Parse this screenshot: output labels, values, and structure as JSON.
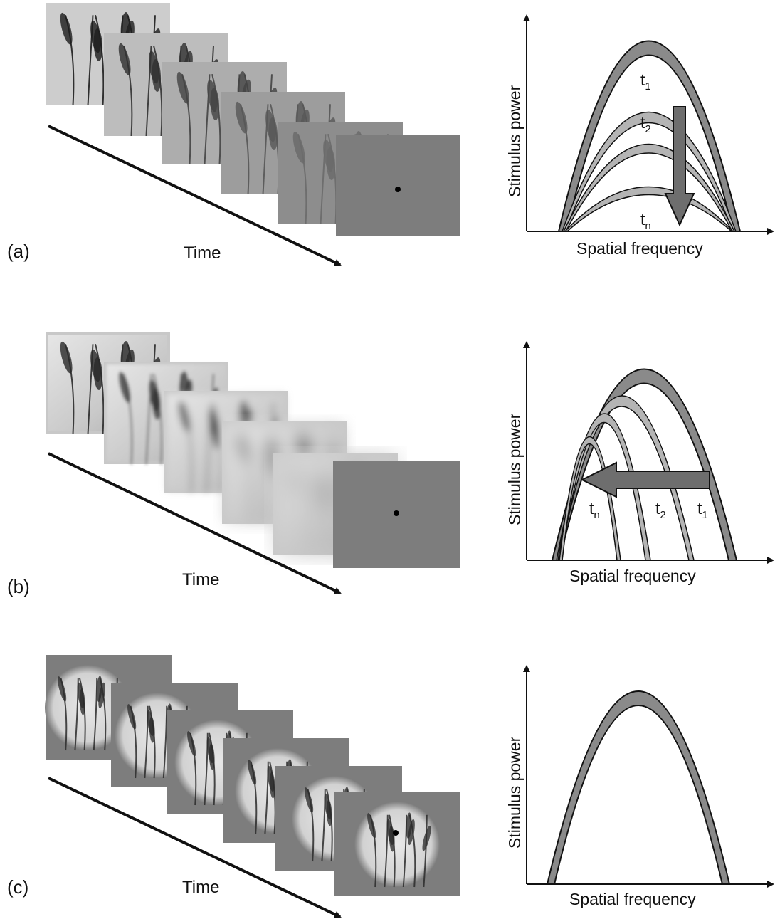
{
  "panels": [
    {
      "id": "a",
      "label": "(a)",
      "time_label": "Time",
      "xlabel": "Spatial frequency",
      "ylabel": "Stimulus power",
      "time_marks": [
        {
          "base": "t",
          "sub": "1"
        },
        {
          "base": "t",
          "sub": "2"
        },
        {
          "base": "t",
          "sub": "n"
        }
      ]
    },
    {
      "id": "b",
      "label": "(b)",
      "time_label": "Time",
      "xlabel": "Spatial frequency",
      "ylabel": "Stimulus power",
      "time_marks": [
        {
          "base": "t",
          "sub": "n"
        },
        {
          "base": "t",
          "sub": "2"
        },
        {
          "base": "t",
          "sub": "1"
        }
      ]
    },
    {
      "id": "c",
      "label": "(c)",
      "time_label": "Time",
      "xlabel": "Spatial frequency",
      "ylabel": "Stimulus power",
      "time_marks": []
    }
  ],
  "colors": {
    "band_dark": "#8a8a8a",
    "band_light": "#b4b4b4",
    "frame_gray": "#7d7d7d",
    "stroke": "#111111"
  }
}
